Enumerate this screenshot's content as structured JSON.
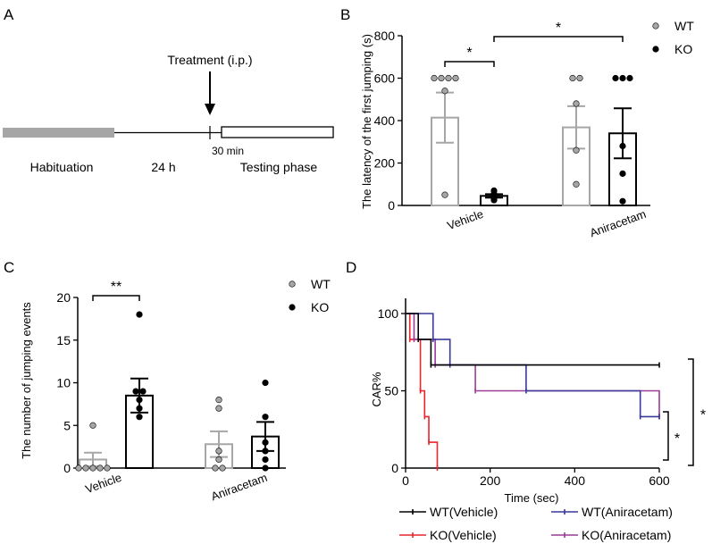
{
  "panel_labels": {
    "a": "A",
    "b": "B",
    "c": "C",
    "d": "D"
  },
  "schematic": {
    "treatment_label": "Treatment (i.p.)",
    "habituation_label": "Habituation",
    "interval_label": "24 h",
    "offset_label": "30 min",
    "testing_label": "Testing phase",
    "colors": {
      "habituation_bar": "#a6a6a6"
    }
  },
  "chart_data": [
    {
      "id": "B",
      "type": "bar",
      "categories": [
        "Vehicle",
        "Aniracetam"
      ],
      "ylabel": "The latency of the first jumping (s)",
      "xlabel": "",
      "ylim": [
        0,
        800
      ],
      "yticks": [
        0,
        200,
        400,
        600,
        800
      ],
      "legend": {
        "placement": "top-right",
        "entries": [
          "WT",
          "KO"
        ]
      },
      "series": [
        {
          "name": "WT",
          "color": "#a6a6a6",
          "values": [
            414,
            368
          ],
          "sem": [
            118,
            100
          ],
          "points": [
            [
              600,
              600,
              600,
              600,
              540,
              50
            ],
            [
              600,
              600,
              480,
              260,
              100
            ]
          ]
        },
        {
          "name": "KO",
          "color": "#000000",
          "values": [
            45,
            340
          ],
          "sem": [
            8,
            118
          ],
          "points": [
            [
              70,
              55,
              45,
              40,
              30,
              25
            ],
            [
              600,
              600,
              600,
              280,
              150,
              20
            ]
          ]
        }
      ],
      "significance": [
        {
          "label": "*",
          "from": [
            "Vehicle",
            "WT"
          ],
          "to": [
            "Vehicle",
            "KO"
          ]
        },
        {
          "label": "*",
          "from": [
            "Vehicle",
            "KO"
          ],
          "to": [
            "Aniracetam",
            "KO"
          ]
        }
      ]
    },
    {
      "id": "C",
      "type": "bar",
      "categories": [
        "Vehicle",
        "Aniracetam"
      ],
      "ylabel": "The number of jumping events",
      "xlabel": "",
      "ylim": [
        0,
        20
      ],
      "yticks": [
        0,
        5,
        10,
        15,
        20
      ],
      "legend": {
        "placement": "top-right",
        "entries": [
          "WT",
          "KO"
        ]
      },
      "series": [
        {
          "name": "WT",
          "color": "#a6a6a6",
          "values": [
            1.0,
            2.8
          ],
          "sem": [
            0.8,
            1.5
          ],
          "points": [
            [
              5,
              0,
              0,
              0,
              0,
              0
            ],
            [
              8,
              7,
              2,
              1,
              0,
              0
            ]
          ]
        },
        {
          "name": "KO",
          "color": "#000000",
          "values": [
            8.5,
            3.7
          ],
          "sem": [
            2.0,
            1.7
          ],
          "points": [
            [
              18,
              9,
              9,
              8,
              7,
              6
            ],
            [
              10,
              6,
              3,
              2,
              1,
              0
            ]
          ]
        }
      ],
      "significance": [
        {
          "label": "**",
          "from": [
            "Vehicle",
            "WT"
          ],
          "to": [
            "Vehicle",
            "KO"
          ]
        }
      ]
    },
    {
      "id": "D",
      "type": "line",
      "step": true,
      "xlabel": "Time (sec)",
      "ylabel": "CAR%",
      "xlim": [
        0,
        600
      ],
      "ylim": [
        0,
        100
      ],
      "xticks": [
        0,
        200,
        400,
        600
      ],
      "yticks": [
        0,
        50,
        100
      ],
      "legend": {
        "placement": "bottom",
        "entries": [
          "WT(Vehicle)",
          "KO(Vehicle)",
          "WT(Aniracetam)",
          "KO(Aniracetam)"
        ]
      },
      "series": [
        {
          "name": "WT(Vehicle)",
          "color": "#000000",
          "x": [
            0,
            30,
            60,
            600
          ],
          "y": [
            100,
            83.3,
            66.7,
            66.7
          ]
        },
        {
          "name": "KO(Vehicle)",
          "color": "#e8262b",
          "x": [
            0,
            10,
            35,
            45,
            55,
            75
          ],
          "y": [
            100,
            83.3,
            50,
            33.3,
            16.7,
            0
          ]
        },
        {
          "name": "WT(Aniracetam)",
          "color": "#38399b",
          "x": [
            0,
            65,
            105,
            285,
            555,
            600
          ],
          "y": [
            100,
            83.3,
            66.7,
            50,
            33.3,
            33.3
          ]
        },
        {
          "name": "KO(Aniracetam)",
          "color": "#9c3c96",
          "x": [
            0,
            20,
            70,
            165,
            600
          ],
          "y": [
            100,
            83.3,
            66.7,
            50,
            33.3
          ]
        }
      ],
      "significance": [
        {
          "label": "*",
          "between": [
            "KO(Vehicle)",
            "KO(Aniracetam)"
          ]
        },
        {
          "label": "*",
          "between": [
            "KO(Vehicle)",
            "WT(Vehicle)"
          ]
        }
      ]
    }
  ]
}
